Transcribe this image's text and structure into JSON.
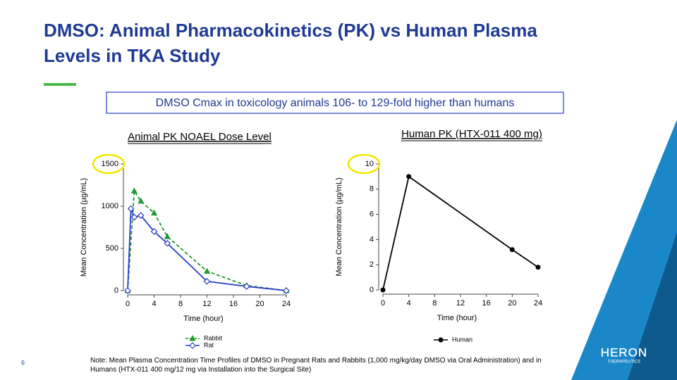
{
  "title": "DMSO: Animal Pharmacokinetics (PK) vs Human Plasma Levels in TKA Study",
  "callout": "DMSO Cmax in toxicology animals 106- to 129-fold higher than humans",
  "note": "Note: Mean Plasma Concentration Time Profiles of DMSO in Pregnant Rats and Rabbits (1,000 mg/kg/day DMSO via Oral Administration) and in Humans (HTX-011 400 mg/12 mg via Installation into the Surgical Site)",
  "page_number": "6",
  "logo": {
    "name": "HERON",
    "tagline": "THERAPEUTICS"
  },
  "chart_data": [
    {
      "type": "line",
      "title": "Animal PK NOAEL Dose Level",
      "x_label": "Time (hour)",
      "y_label": "Mean Concentration (µg/mL)",
      "xlim": [
        0,
        24
      ],
      "xticks": [
        0,
        4,
        8,
        12,
        16,
        20,
        24
      ],
      "ylim": [
        0,
        1500
      ],
      "yticks": [
        0,
        500,
        1000,
        1500
      ],
      "highlight_top_tick": true,
      "series": [
        {
          "name": "Rabbit",
          "color": "#1f9a2e",
          "dashed": true,
          "marker": "triangle",
          "x": [
            0,
            1,
            2,
            4,
            6,
            12,
            18,
            24
          ],
          "values": [
            0,
            1180,
            1060,
            920,
            640,
            230,
            60,
            0
          ]
        },
        {
          "name": "Rat",
          "color": "#2a3fc9",
          "dashed": false,
          "marker": "diamond",
          "x": [
            0,
            0.5,
            1,
            2,
            4,
            6,
            12,
            18,
            24
          ],
          "values": [
            0,
            970,
            870,
            890,
            700,
            560,
            110,
            50,
            0
          ]
        }
      ]
    },
    {
      "type": "line",
      "title": "Human PK (HTX-011 400 mg)",
      "x_label": "Time (hour)",
      "y_label": "Mean Concentration (µg/mL)",
      "xlim": [
        0,
        24
      ],
      "xticks": [
        0,
        4,
        8,
        12,
        16,
        20,
        24
      ],
      "ylim": [
        0,
        10
      ],
      "yticks": [
        0,
        2,
        4,
        6,
        8,
        10
      ],
      "highlight_top_tick": true,
      "series": [
        {
          "name": "Human",
          "color": "#000000",
          "dashed": false,
          "marker": "circle",
          "x": [
            0,
            4,
            20,
            24
          ],
          "values": [
            0,
            9,
            3.2,
            1.8
          ]
        }
      ]
    }
  ]
}
